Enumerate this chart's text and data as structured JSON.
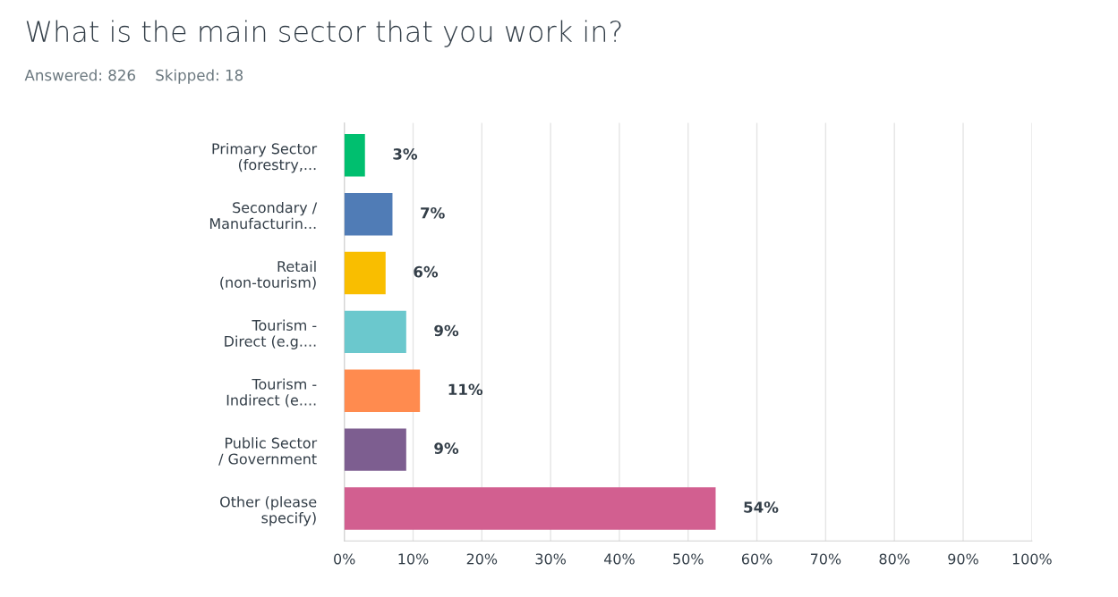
{
  "chart_data": {
    "type": "bar",
    "orientation": "horizontal",
    "title": "What is the main sector that you work in?",
    "subtitle": "Answered: 826    Skipped: 18",
    "categories": [
      "Primary Sector\n(forestry,...",
      "Secondary /\nManufacturin...",
      "Retail\n(non-tourism)",
      "Tourism -\nDirect (e.g....",
      "Tourism -\nIndirect (e....",
      "Public Sector\n/ Government",
      "Other (please\nspecify)"
    ],
    "values": [
      3,
      7,
      6,
      9,
      11,
      9,
      54
    ],
    "value_labels": [
      "3%",
      "7%",
      "6%",
      "9%",
      "11%",
      "9%",
      "54%"
    ],
    "colors": [
      "#00bf6f",
      "#507cb6",
      "#f9be00",
      "#6bc8cd",
      "#ff8b4f",
      "#7d5e90",
      "#d25f90"
    ],
    "xlim": [
      0,
      100
    ],
    "xticks": [
      {
        "value": 0,
        "label": "0%"
      },
      {
        "value": 10,
        "label": "10%"
      },
      {
        "value": 20,
        "label": "20%"
      },
      {
        "value": 30,
        "label": "30%"
      },
      {
        "value": 40,
        "label": "40%"
      },
      {
        "value": 50,
        "label": "50%"
      },
      {
        "value": 60,
        "label": "60%"
      },
      {
        "value": 70,
        "label": "70%"
      },
      {
        "value": 80,
        "label": "80%"
      },
      {
        "value": 90,
        "label": "90%"
      },
      {
        "value": 100,
        "label": "100%"
      }
    ],
    "grid": "x"
  }
}
